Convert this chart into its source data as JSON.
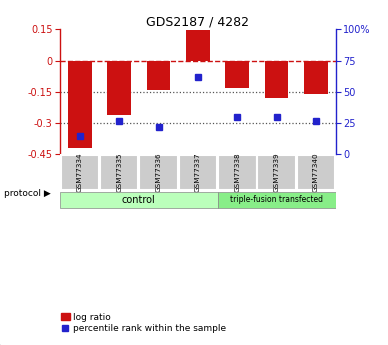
{
  "title": "GDS2187 / 4282",
  "samples": [
    "GSM77334",
    "GSM77335",
    "GSM77336",
    "GSM77337",
    "GSM77338",
    "GSM77339",
    "GSM77340"
  ],
  "log_ratio": [
    -0.42,
    -0.26,
    -0.14,
    0.148,
    -0.13,
    -0.18,
    -0.16
  ],
  "percentile_rank_raw": [
    15,
    27,
    22,
    62,
    30,
    30,
    27
  ],
  "ylim_left": [
    -0.45,
    0.15
  ],
  "ylim_right": [
    0,
    100
  ],
  "yticks_left": [
    0.15,
    0,
    -0.15,
    -0.3,
    -0.45
  ],
  "yticks_right": [
    100,
    75,
    50,
    25,
    0
  ],
  "bar_color": "#cc1111",
  "dot_color": "#2222cc",
  "control_label": "control",
  "triple_fusion_label": "triple-fusion transfected",
  "protocol_label": "protocol",
  "legend_bar_label": "log ratio",
  "legend_dot_label": "percentile rank within the sample",
  "control_color": "#bbffbb",
  "triple_color": "#88ee88",
  "sample_box_color": "#cccccc",
  "dashed_line_color": "#cc1111",
  "dotted_line_color": "#555555",
  "background_color": "#ffffff"
}
